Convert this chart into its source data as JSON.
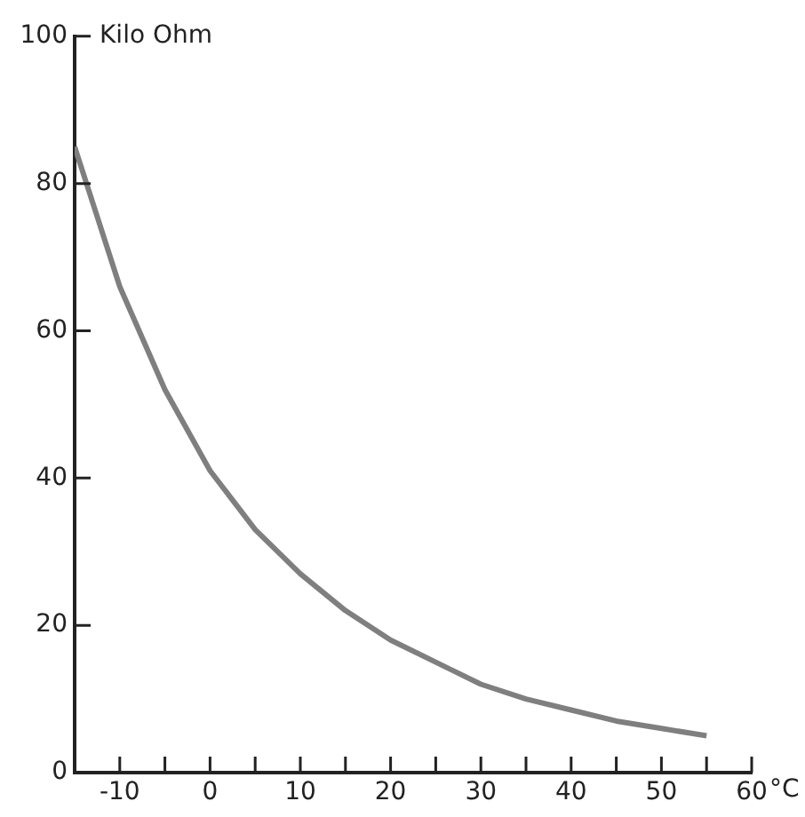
{
  "chart_data": {
    "type": "line",
    "xlabel": "°C",
    "ylabel": "Kilo Ohm",
    "x": [
      -15,
      -10,
      -5,
      0,
      5,
      10,
      15,
      20,
      25,
      30,
      35,
      40,
      45,
      50,
      55
    ],
    "series": [
      {
        "color": "#7f7f7f",
        "values": [
          85,
          66,
          52,
          41,
          33,
          27,
          22,
          18,
          15,
          12,
          10,
          8.5,
          7,
          6,
          5
        ]
      }
    ],
    "xlim": [
      -15,
      60
    ],
    "xticks": [
      -10,
      {
        "value": -5,
        "label": null
      },
      0,
      {
        "value": 5,
        "label": null
      },
      10,
      {
        "value": 15,
        "label": null
      },
      20,
      {
        "value": 25,
        "label": null
      },
      30,
      {
        "value": 35,
        "label": null
      },
      40,
      {
        "value": 45,
        "label": null
      },
      50,
      {
        "value": 55,
        "label": null
      },
      60
    ],
    "ylim": [
      0,
      100
    ],
    "yticks": [
      0,
      20,
      40,
      60,
      80,
      100
    ],
    "grid": false,
    "legend": false,
    "marker": "none",
    "line_style": "solid"
  }
}
